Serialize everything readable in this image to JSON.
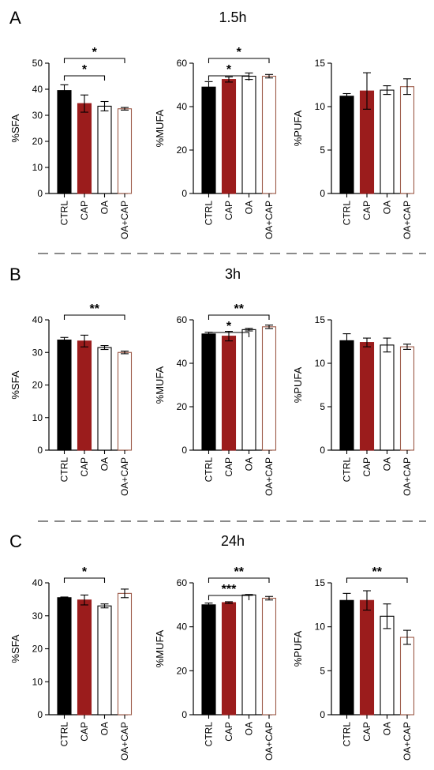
{
  "colors": {
    "CTRL": "#000000",
    "CAP": "#9b1c1c",
    "OA": "#ffffff",
    "OA+CAP": "#ffffff",
    "CTRL_edge": "#000000",
    "CAP_edge": "#9b1c1c",
    "OA_edge": "#000000",
    "OA+CAP_edge": "#9c5a48",
    "divider": "#8a8a8a"
  },
  "panels": [
    {
      "letter": "A",
      "title": "1.5h"
    },
    {
      "letter": "B",
      "title": "3h"
    },
    {
      "letter": "C",
      "title": "24h"
    }
  ],
  "chart_data": [
    {
      "type": "bar",
      "panel": "A",
      "categories": [
        "CTRL",
        "CAP",
        "OA",
        "OA+CAP"
      ],
      "values": [
        39.5,
        34.5,
        33.5,
        32.5
      ],
      "errors": [
        2.2,
        3.3,
        1.8,
        0.5
      ],
      "ylabel": "%SFA",
      "ylim": [
        0,
        50
      ],
      "yticks": [
        0,
        10,
        20,
        30,
        40,
        50
      ],
      "comparisons": [
        {
          "from": "CTRL",
          "to": "OA+CAP",
          "label": "*"
        },
        {
          "from": "CTRL",
          "to": "OA",
          "label": "*"
        }
      ]
    },
    {
      "type": "bar",
      "panel": "A",
      "categories": [
        "CTRL",
        "CAP",
        "OA",
        "OA+CAP"
      ],
      "values": [
        49,
        52.5,
        54,
        54
      ],
      "errors": [
        2.5,
        1.2,
        1.5,
        0.8
      ],
      "ylabel": "%MUFA",
      "ylim": [
        0,
        60
      ],
      "yticks": [
        0,
        20,
        40,
        60
      ],
      "comparisons": [
        {
          "from": "CTRL",
          "to": "OA+CAP",
          "label": "*"
        },
        {
          "from": "CTRL",
          "to": "OA",
          "label": "*"
        }
      ]
    },
    {
      "type": "bar",
      "panel": "A",
      "categories": [
        "CTRL",
        "CAP",
        "OA",
        "OA+CAP"
      ],
      "values": [
        11.2,
        11.8,
        11.9,
        12.3
      ],
      "errors": [
        0.3,
        2.1,
        0.5,
        0.9
      ],
      "ylabel": "%PUFA",
      "ylim": [
        0,
        15
      ],
      "yticks": [
        0,
        5,
        10,
        15
      ],
      "comparisons": []
    },
    {
      "type": "bar",
      "panel": "B",
      "categories": [
        "CTRL",
        "CAP",
        "OA",
        "OA+CAP"
      ],
      "values": [
        33.8,
        33.5,
        31.5,
        30
      ],
      "errors": [
        0.8,
        1.8,
        0.6,
        0.4
      ],
      "ylabel": "%SFA",
      "ylim": [
        0,
        40
      ],
      "yticks": [
        0,
        10,
        20,
        30,
        40
      ],
      "comparisons": [
        {
          "from": "CTRL",
          "to": "OA+CAP",
          "label": "**"
        }
      ]
    },
    {
      "type": "bar",
      "panel": "B",
      "categories": [
        "CTRL",
        "CAP",
        "OA",
        "OA+CAP"
      ],
      "values": [
        53.5,
        52.5,
        55.5,
        56.8
      ],
      "errors": [
        0.8,
        2.2,
        0.6,
        0.8
      ],
      "ylabel": "%MUFA",
      "ylim": [
        0,
        60
      ],
      "yticks": [
        0,
        20,
        40,
        60
      ],
      "comparisons": [
        {
          "from": "CTRL",
          "to": "OA+CAP",
          "label": "**"
        },
        {
          "from": "CTRL",
          "to": "OA",
          "label": "*"
        }
      ]
    },
    {
      "type": "bar",
      "panel": "B",
      "categories": [
        "CTRL",
        "CAP",
        "OA",
        "OA+CAP"
      ],
      "values": [
        12.6,
        12.4,
        12.1,
        11.9
      ],
      "errors": [
        0.8,
        0.5,
        0.8,
        0.3
      ],
      "ylabel": "%PUFA",
      "ylim": [
        0,
        15
      ],
      "yticks": [
        0,
        5,
        10,
        15
      ],
      "comparisons": []
    },
    {
      "type": "bar",
      "panel": "C",
      "categories": [
        "CTRL",
        "CAP",
        "OA",
        "OA+CAP"
      ],
      "values": [
        35.5,
        34.8,
        33,
        36.8
      ],
      "errors": [
        0.2,
        1.5,
        0.6,
        1.3
      ],
      "ylabel": "%SFA",
      "ylim": [
        0,
        40
      ],
      "yticks": [
        0,
        10,
        20,
        30,
        40
      ],
      "comparisons": [
        {
          "from": "CTRL",
          "to": "OA",
          "label": "*"
        }
      ]
    },
    {
      "type": "bar",
      "panel": "C",
      "categories": [
        "CTRL",
        "CAP",
        "OA",
        "OA+CAP"
      ],
      "values": [
        50,
        51,
        54.5,
        53
      ],
      "errors": [
        0.8,
        0.4,
        0.2,
        0.8
      ],
      "ylabel": "%MUFA",
      "ylim": [
        0,
        60
      ],
      "yticks": [
        0,
        20,
        40,
        60
      ],
      "comparisons": [
        {
          "from": "CTRL",
          "to": "OA+CAP",
          "label": "**"
        },
        {
          "from": "CTRL",
          "to": "OA",
          "label": "***"
        }
      ]
    },
    {
      "type": "bar",
      "panel": "C",
      "categories": [
        "CTRL",
        "CAP",
        "OA",
        "OA+CAP"
      ],
      "values": [
        13,
        13,
        11.2,
        8.8
      ],
      "errors": [
        0.8,
        1.1,
        1.4,
        0.8
      ],
      "ylabel": "%PUFA",
      "ylim": [
        0,
        15
      ],
      "yticks": [
        0,
        5,
        10,
        15
      ],
      "comparisons": [
        {
          "from": "CTRL",
          "to": "OA+CAP",
          "label": "**"
        }
      ]
    }
  ]
}
